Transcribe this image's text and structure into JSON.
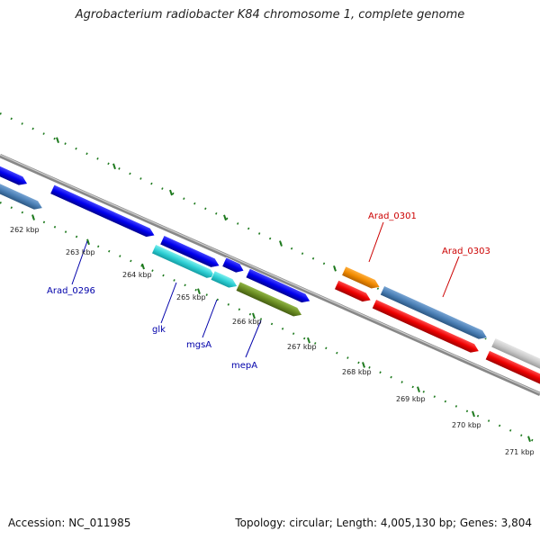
{
  "title": "Agrobacterium radiobacter K84 chromosome 1, complete genome",
  "footer": {
    "accession": "Accession: NC_011985",
    "summary": "Topology: circular; Length: 4,005,130 bp; Genes: 3,804"
  },
  "scale_ticks": [
    "262 kbp",
    "263 kbp",
    "264 kbp",
    "265 kbp",
    "266 kbp",
    "267 kbp",
    "268 kbp",
    "269 kbp",
    "270 kbp",
    "271 kbp"
  ],
  "gene_labels": {
    "arad_0296": "Arad_0296",
    "glk": "glk",
    "mgsa": "mgsA",
    "mepa": "mepA",
    "arad_0301": "Arad_0301",
    "arad_0303": "Arad_0303"
  },
  "colors": {
    "blue": "#0000ee",
    "steel_blue": "#4a7fb5",
    "cyan": "#2ecfd4",
    "olive": "#6a8c22",
    "orange": "#f08a00",
    "red": "#ee0000",
    "gray": "#c8c8c8",
    "tick_green": "#1e7a1e",
    "label_blue": "#0000aa",
    "label_red": "#cc0000"
  }
}
